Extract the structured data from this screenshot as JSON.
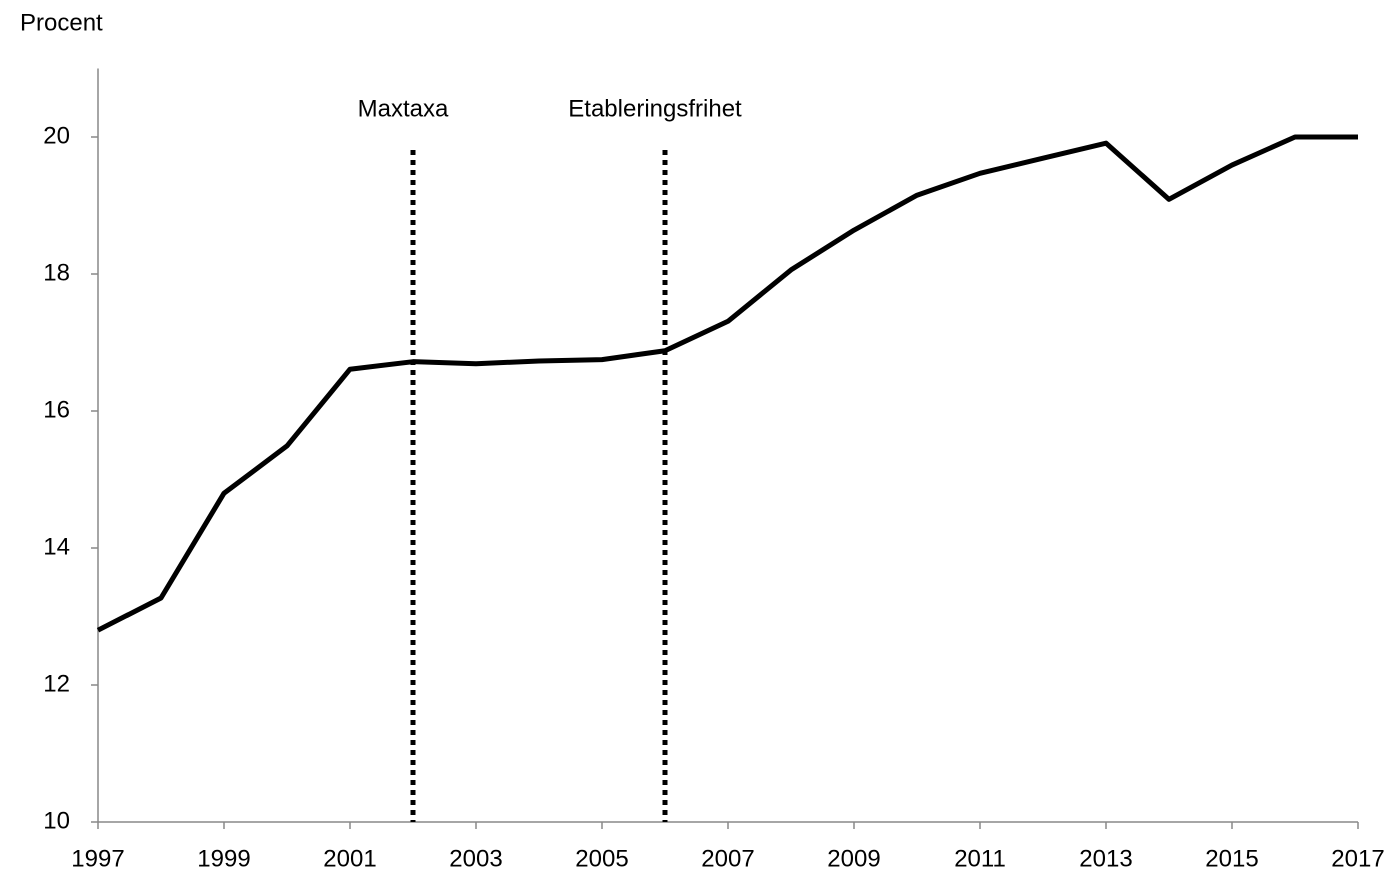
{
  "chart_data": {
    "type": "line",
    "y_label": "Procent",
    "x": [
      1997,
      1998,
      1999,
      2000,
      2001,
      2002,
      2003,
      2004,
      2005,
      2006,
      2007,
      2008,
      2009,
      2010,
      2011,
      2012,
      2013,
      2014,
      2015,
      2016,
      2017
    ],
    "values": [
      12.8,
      13.27,
      14.8,
      15.49,
      16.61,
      16.72,
      16.69,
      16.73,
      16.75,
      16.88,
      17.31,
      18.06,
      18.64,
      19.15,
      19.47,
      19.69,
      19.91,
      19.09,
      19.59,
      20.0,
      20.0
    ],
    "color": "#000000",
    "xlim": [
      1997,
      2017
    ],
    "xticks": [
      1997,
      1999,
      2001,
      2003,
      2005,
      2007,
      2009,
      2011,
      2013,
      2015,
      2017
    ],
    "ylim": [
      10,
      21
    ],
    "yticks": [
      10,
      12,
      14,
      16,
      18,
      20
    ],
    "annotations": [
      {
        "x": 2002,
        "label": "Maxtaxa"
      },
      {
        "x": 2006,
        "label": "Etableringsfrihet"
      }
    ]
  }
}
